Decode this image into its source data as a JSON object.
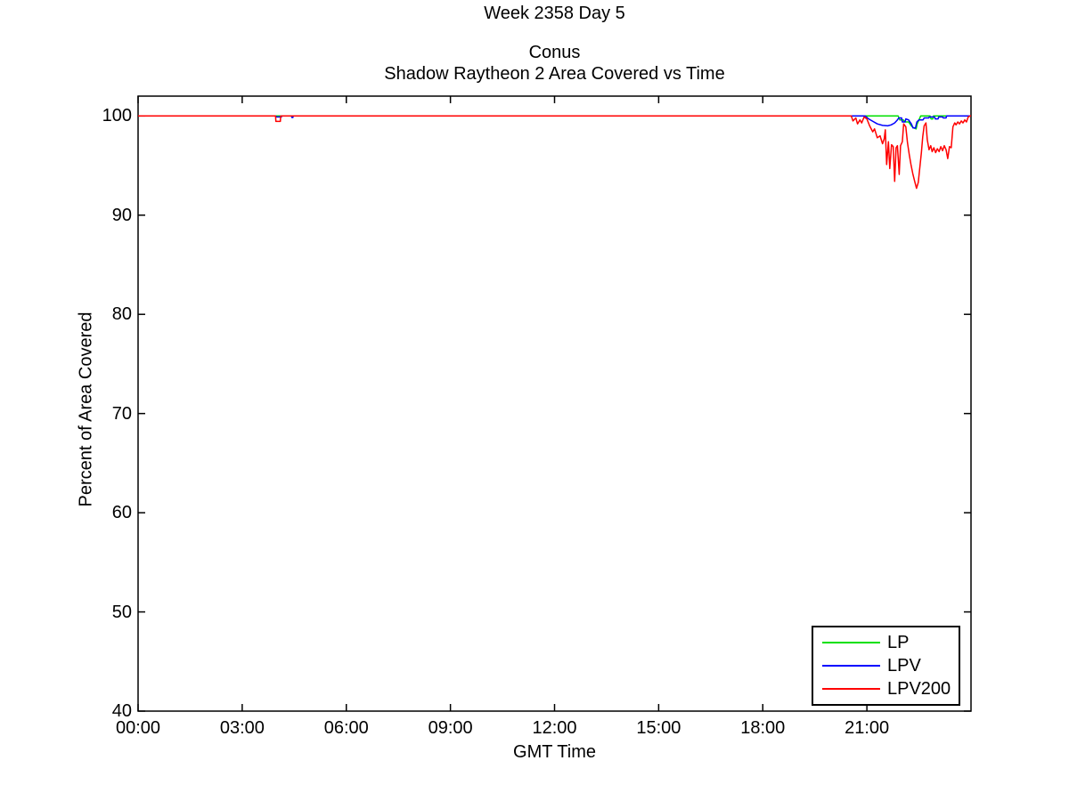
{
  "figure": {
    "background": "#ffffff",
    "suptitle": "Week 2358 Day 5"
  },
  "chart_data": {
    "type": "line",
    "title": "Conus",
    "subtitle": "Shadow Raytheon 2 Area Covered vs Time",
    "xlabel": "GMT Time",
    "ylabel": "Percent of Area Covered",
    "xlim_hours": [
      0,
      24
    ],
    "ylim": [
      40,
      102
    ],
    "grid": false,
    "axis_color": "#000000",
    "x_ticks": [
      {
        "hour": 0,
        "label": "00:00"
      },
      {
        "hour": 3,
        "label": "03:00"
      },
      {
        "hour": 6,
        "label": "06:00"
      },
      {
        "hour": 9,
        "label": "09:00"
      },
      {
        "hour": 12,
        "label": "12:00"
      },
      {
        "hour": 15,
        "label": "15:00"
      },
      {
        "hour": 18,
        "label": "18:00"
      },
      {
        "hour": 21,
        "label": "21:00"
      }
    ],
    "y_ticks": [
      {
        "value": 40,
        "label": "40"
      },
      {
        "value": 50,
        "label": "50"
      },
      {
        "value": 60,
        "label": "60"
      },
      {
        "value": 70,
        "label": "70"
      },
      {
        "value": 80,
        "label": "80"
      },
      {
        "value": 90,
        "label": "90"
      },
      {
        "value": 100,
        "label": "100"
      }
    ],
    "legend": {
      "position": "bottom-right",
      "entries": [
        "LP",
        "LPV",
        "LPV200"
      ]
    },
    "series": [
      {
        "name": "LP",
        "color": "#00e000",
        "points": [
          [
            0,
            100
          ],
          [
            21.9,
            100
          ],
          [
            21.95,
            99.6
          ],
          [
            22.05,
            99.6
          ],
          [
            22.1,
            99.4
          ],
          [
            22.2,
            99.4
          ],
          [
            22.28,
            99.0
          ],
          [
            22.35,
            98.8
          ],
          [
            22.42,
            98.7
          ],
          [
            22.45,
            99.2
          ],
          [
            22.5,
            99.6
          ],
          [
            22.55,
            100
          ],
          [
            22.82,
            100
          ],
          [
            22.85,
            99.7
          ],
          [
            22.9,
            99.7
          ],
          [
            22.92,
            100
          ],
          [
            24,
            100
          ]
        ]
      },
      {
        "name": "LPV",
        "color": "#0000ff",
        "points": [
          [
            0,
            100
          ],
          [
            3.96,
            100
          ],
          [
            3.97,
            99.9
          ],
          [
            4.13,
            99.9
          ],
          [
            4.14,
            100
          ],
          [
            4.42,
            100
          ],
          [
            4.43,
            99.85
          ],
          [
            4.46,
            99.85
          ],
          [
            4.47,
            100
          ],
          [
            20.95,
            100
          ],
          [
            21.05,
            99.7
          ],
          [
            21.15,
            99.5
          ],
          [
            21.3,
            99.2
          ],
          [
            21.45,
            99.05
          ],
          [
            21.6,
            99.0
          ],
          [
            21.7,
            99.1
          ],
          [
            21.8,
            99.3
          ],
          [
            21.88,
            99.6
          ],
          [
            21.92,
            99.8
          ],
          [
            22.0,
            99.8
          ],
          [
            22.02,
            99.4
          ],
          [
            22.1,
            99.4
          ],
          [
            22.12,
            99.7
          ],
          [
            22.2,
            99.6
          ],
          [
            22.28,
            99.2
          ],
          [
            22.33,
            98.8
          ],
          [
            22.4,
            98.8
          ],
          [
            22.44,
            99.4
          ],
          [
            22.5,
            99.6
          ],
          [
            22.62,
            99.6
          ],
          [
            22.65,
            99.8
          ],
          [
            22.78,
            99.8
          ],
          [
            22.8,
            99.9
          ],
          [
            22.95,
            99.9
          ],
          [
            22.97,
            99.7
          ],
          [
            23.05,
            99.7
          ],
          [
            23.07,
            99.9
          ],
          [
            23.18,
            99.9
          ],
          [
            23.2,
            99.8
          ],
          [
            23.28,
            99.8
          ],
          [
            23.3,
            100
          ],
          [
            24,
            100
          ]
        ]
      },
      {
        "name": "LPV200",
        "color": "#ff0000",
        "points": [
          [
            0,
            100
          ],
          [
            3.96,
            100
          ],
          [
            3.97,
            99.45
          ],
          [
            4.1,
            99.45
          ],
          [
            4.11,
            100
          ],
          [
            20.55,
            100
          ],
          [
            20.6,
            99.5
          ],
          [
            20.68,
            99.8
          ],
          [
            20.73,
            99.2
          ],
          [
            20.8,
            99.6
          ],
          [
            20.85,
            99.3
          ],
          [
            20.92,
            99.9
          ],
          [
            21.0,
            99.7
          ],
          [
            21.08,
            99.0
          ],
          [
            21.17,
            98.4
          ],
          [
            21.22,
            98.7
          ],
          [
            21.3,
            97.8
          ],
          [
            21.38,
            98.0
          ],
          [
            21.45,
            97.2
          ],
          [
            21.5,
            97.7
          ],
          [
            21.53,
            98.6
          ],
          [
            21.57,
            95.1
          ],
          [
            21.62,
            97.4
          ],
          [
            21.66,
            94.7
          ],
          [
            21.71,
            97.1
          ],
          [
            21.76,
            96.9
          ],
          [
            21.8,
            93.4
          ],
          [
            21.84,
            96.8
          ],
          [
            21.88,
            97.0
          ],
          [
            21.93,
            94.1
          ],
          [
            21.97,
            97.0
          ],
          [
            22.02,
            97.4
          ],
          [
            22.06,
            99.2
          ],
          [
            22.12,
            98.9
          ],
          [
            22.17,
            97.3
          ],
          [
            22.22,
            96.1
          ],
          [
            22.27,
            95.1
          ],
          [
            22.32,
            94.2
          ],
          [
            22.37,
            93.5
          ],
          [
            22.43,
            92.7
          ],
          [
            22.48,
            93.3
          ],
          [
            22.52,
            94.6
          ],
          [
            22.57,
            96.3
          ],
          [
            22.61,
            97.9
          ],
          [
            22.65,
            99.0
          ],
          [
            22.7,
            99.3
          ],
          [
            22.74,
            97.6
          ],
          [
            22.79,
            96.6
          ],
          [
            22.84,
            97.0
          ],
          [
            22.88,
            96.4
          ],
          [
            22.93,
            96.8
          ],
          [
            22.98,
            96.3
          ],
          [
            23.03,
            96.7
          ],
          [
            23.08,
            96.4
          ],
          [
            23.13,
            96.9
          ],
          [
            23.18,
            96.5
          ],
          [
            23.23,
            97.0
          ],
          [
            23.28,
            96.6
          ],
          [
            23.33,
            95.7
          ],
          [
            23.38,
            96.9
          ],
          [
            23.43,
            96.8
          ],
          [
            23.48,
            98.9
          ],
          [
            23.53,
            99.3
          ],
          [
            23.57,
            99.1
          ],
          [
            23.62,
            99.4
          ],
          [
            23.67,
            99.2
          ],
          [
            23.72,
            99.5
          ],
          [
            23.77,
            99.3
          ],
          [
            23.82,
            99.6
          ],
          [
            23.87,
            99.4
          ],
          [
            23.92,
            99.9
          ],
          [
            23.97,
            100
          ],
          [
            24,
            100
          ]
        ]
      }
    ]
  }
}
